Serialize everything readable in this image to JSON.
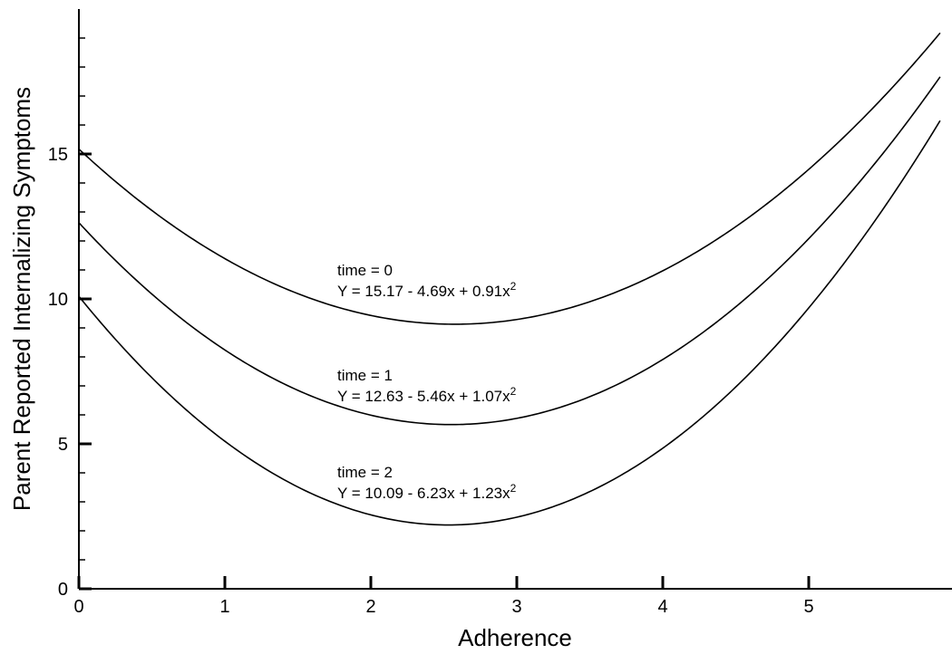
{
  "chart_data": {
    "type": "line",
    "title": "",
    "xlabel": "Adherence",
    "ylabel": "Parent Reported Internalizing Symptoms",
    "xlim": [
      0,
      5.9
    ],
    "ylim": [
      0,
      19.5
    ],
    "x_ticks": [
      0,
      1,
      2,
      3,
      4,
      5
    ],
    "y_ticks": [
      0,
      5,
      10,
      15
    ],
    "y_minor_step": 1,
    "grid": false,
    "series": [
      {
        "key": "t0",
        "label": "time = 0",
        "equation_text": "Y = 15.17 - 4.69x + 0.91x",
        "superscript": "2",
        "coefficients": [
          15.17,
          -4.69,
          0.91
        ],
        "x": [
          0,
          0.5,
          1,
          1.5,
          2,
          2.5,
          3,
          3.5,
          4,
          4.5,
          5,
          5.5,
          5.9
        ],
        "y": [
          15.17,
          13.05,
          11.39,
          10.18,
          9.43,
          9.12,
          9.29,
          9.9,
          10.97,
          12.5,
          14.47,
          16.91,
          19.17
        ]
      },
      {
        "key": "t1",
        "label": "time = 1",
        "equation_text": "Y = 12.63 - 5.46x + 1.07x",
        "superscript": "2",
        "coefficients": [
          12.63,
          -5.46,
          1.07
        ],
        "x": [
          0,
          0.5,
          1,
          1.5,
          2,
          2.5,
          3,
          3.5,
          4,
          4.5,
          5,
          5.5,
          5.9
        ],
        "y": [
          12.63,
          10.17,
          8.24,
          6.85,
          5.99,
          5.67,
          5.88,
          6.62,
          7.91,
          9.73,
          12.08,
          14.98,
          17.63
        ]
      },
      {
        "key": "t2",
        "label": "time = 2",
        "equation_text": "Y = 10.09 - 6.23x + 1.23x",
        "superscript": "2",
        "coefficients": [
          10.09,
          -6.23,
          1.23
        ],
        "x": [
          0,
          0.5,
          1,
          1.5,
          2,
          2.5,
          3,
          3.5,
          4,
          4.5,
          5,
          5.5,
          5.9
        ],
        "y": [
          10.09,
          7.28,
          5.09,
          3.52,
          2.55,
          2.2,
          2.47,
          3.35,
          4.85,
          6.95,
          9.69,
          13.03,
          16.07
        ]
      }
    ]
  }
}
